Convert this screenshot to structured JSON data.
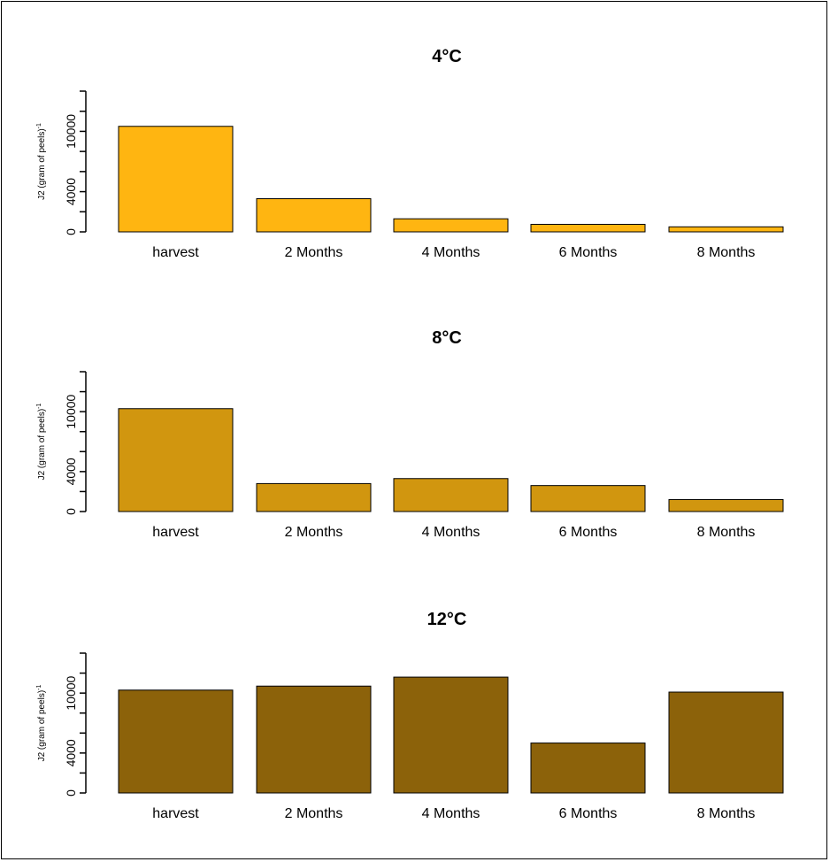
{
  "chart_data": [
    {
      "type": "bar",
      "title": "4°C",
      "ylabel": "J2 (gram of peels)",
      "ylabel_sup": "-1",
      "color": "#FFB511",
      "categories": [
        "harvest",
        "2 Months",
        "4 Months",
        "6 Months",
        "8 Months"
      ],
      "values": [
        10500,
        3300,
        1300,
        750,
        500
      ],
      "yticks": [
        0,
        4000,
        10000
      ],
      "yticks_minor": [
        2000,
        6000,
        8000,
        12000,
        14000
      ],
      "ylim": [
        0,
        14000
      ]
    },
    {
      "type": "bar",
      "title": "8°C",
      "ylabel": "J2 (gram of peels)",
      "ylabel_sup": "-1",
      "color": "#D1960F",
      "categories": [
        "harvest",
        "2 Months",
        "4 Months",
        "6 Months",
        "8 Months"
      ],
      "values": [
        10300,
        2800,
        3300,
        2600,
        1200
      ],
      "yticks": [
        0,
        4000,
        10000
      ],
      "yticks_minor": [
        2000,
        6000,
        8000,
        12000,
        14000
      ],
      "ylim": [
        0,
        14000
      ]
    },
    {
      "type": "bar",
      "title": "12°C",
      "ylabel": "J2 (gram of peels)",
      "ylabel_sup": "-1",
      "color": "#8C620A",
      "categories": [
        "harvest",
        "2 Months",
        "4 Months",
        "6 Months",
        "8 Months"
      ],
      "values": [
        10300,
        10700,
        11600,
        5000,
        10100
      ],
      "yticks": [
        0,
        4000,
        10000
      ],
      "yticks_minor": [
        2000,
        6000,
        8000,
        12000,
        14000
      ],
      "ylim": [
        0,
        14000
      ]
    }
  ]
}
